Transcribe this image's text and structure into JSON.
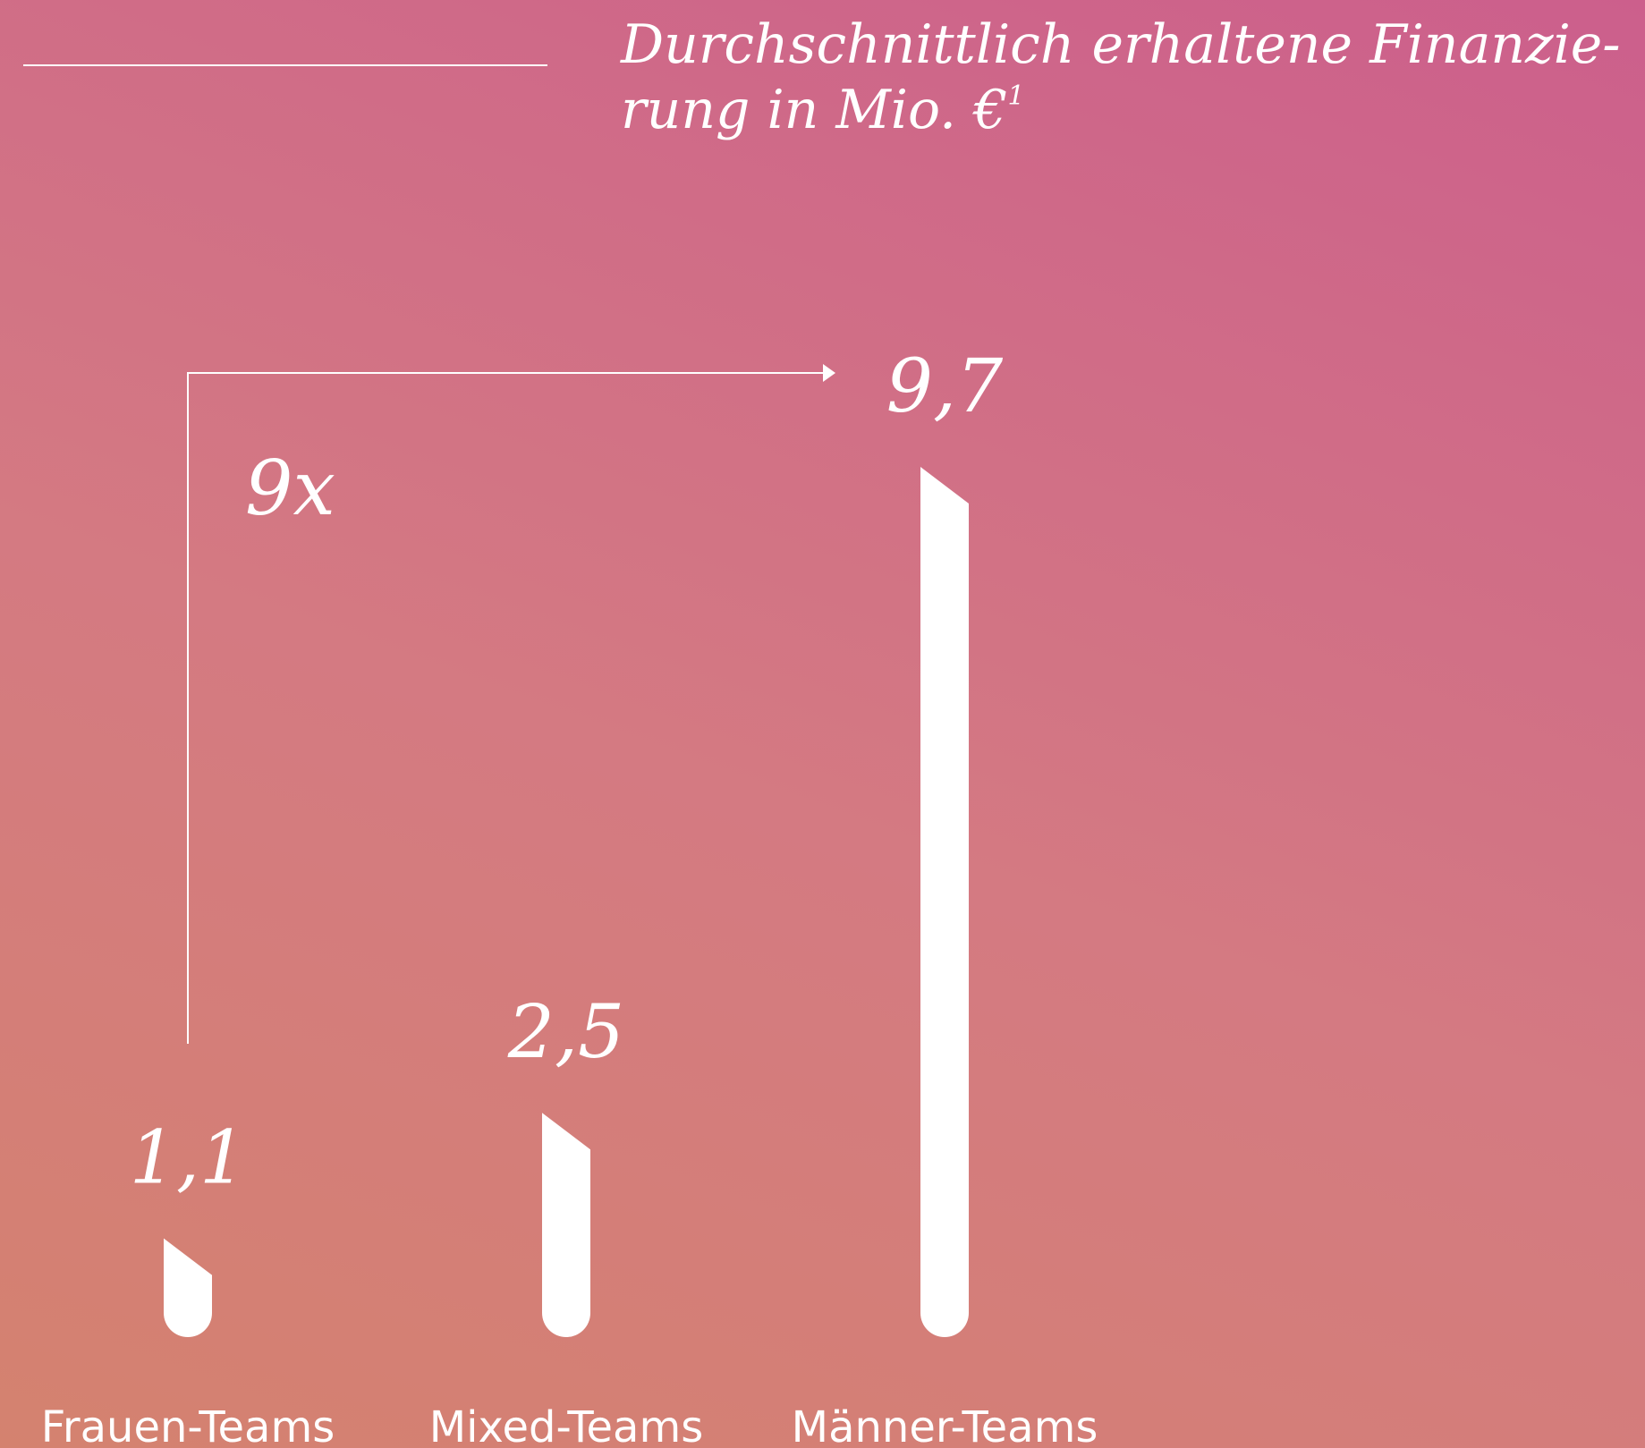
{
  "chart_data": {
    "type": "bar",
    "title_lines": [
      "Durchschnittlich erhaltene Finanzie-",
      "rung in Mio. €"
    ],
    "title_footnote": "1",
    "annotation": "9x",
    "categories": [
      "Frauen-Teams",
      "Mixed-Teams",
      "Männer-Teams"
    ],
    "values": [
      1.1,
      2.5,
      9.7
    ],
    "value_labels": [
      "1,1",
      "2,5",
      "9,7"
    ],
    "color": "#ffffff"
  }
}
